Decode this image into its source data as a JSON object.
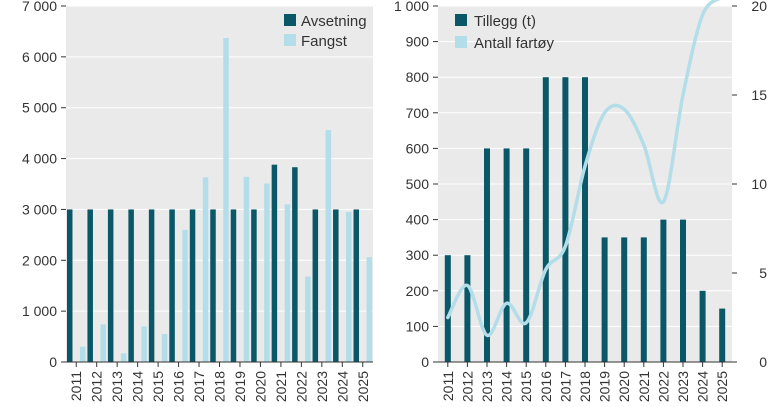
{
  "colors": {
    "dark": "#0a5768",
    "light": "#b3dde8",
    "plot_bg": "#eaeaea",
    "grid": "#ffffff",
    "axis": "#333333"
  },
  "chart_data": [
    {
      "type": "bar",
      "categories": [
        "2011",
        "2012",
        "2013",
        "2014",
        "2015",
        "2016",
        "2017",
        "2018",
        "2019",
        "2020",
        "2021",
        "2022",
        "2023",
        "2024",
        "2025"
      ],
      "series": [
        {
          "name": "Avsetning",
          "color": "#0a5768",
          "values": [
            3000,
            3000,
            3000,
            3000,
            3000,
            3000,
            3000,
            3000,
            3000,
            3000,
            3880,
            3830,
            3000,
            3000,
            3000
          ]
        },
        {
          "name": "Fangst",
          "color": "#b3dde8",
          "values": [
            300,
            740,
            170,
            700,
            550,
            2600,
            3630,
            6370,
            3640,
            3510,
            3100,
            1680,
            4560,
            2950,
            2060
          ]
        }
      ],
      "ylim": [
        0,
        7000
      ],
      "yticks": [
        0,
        1000,
        2000,
        3000,
        4000,
        5000,
        6000,
        7000
      ],
      "ytick_labels": [
        "0",
        "1 000",
        "2 000",
        "3 000",
        "4 000",
        "5 000",
        "6 000",
        "7 000"
      ],
      "legend": "top-right",
      "grid": true
    },
    {
      "type": "bar",
      "categories": [
        "2011",
        "2012",
        "2013",
        "2014",
        "2015",
        "2016",
        "2017",
        "2018",
        "2019",
        "2020",
        "2021",
        "2022",
        "2023",
        "2024",
        "2025"
      ],
      "series": [
        {
          "name": "Tillegg (t)",
          "kind": "bar",
          "axis": "left",
          "color": "#0a5768",
          "values": [
            300,
            300,
            600,
            600,
            600,
            800,
            800,
            800,
            350,
            350,
            350,
            400,
            400,
            200,
            150
          ]
        },
        {
          "name": "Antall fartøy",
          "kind": "line",
          "axis": "right",
          "color": "#b3dde8",
          "values": [
            2.5,
            4.3,
            1.5,
            3.3,
            2.2,
            5.2,
            6.5,
            11,
            14,
            14.2,
            12.2,
            9,
            15,
            19.5,
            20.5
          ]
        }
      ],
      "ylim": [
        0,
        1000
      ],
      "yticks": [
        0,
        100,
        200,
        300,
        400,
        500,
        600,
        700,
        800,
        900,
        1000
      ],
      "ytick_labels": [
        "0",
        "100",
        "200",
        "300",
        "400",
        "500",
        "600",
        "700",
        "800",
        "900",
        "1 000"
      ],
      "y2lim": [
        0,
        20
      ],
      "y2ticks": [
        0,
        5,
        10,
        15,
        20
      ],
      "y2tick_labels": [
        "0",
        "5",
        "10",
        "15",
        "20"
      ],
      "legend": "top-left",
      "grid": true
    }
  ]
}
